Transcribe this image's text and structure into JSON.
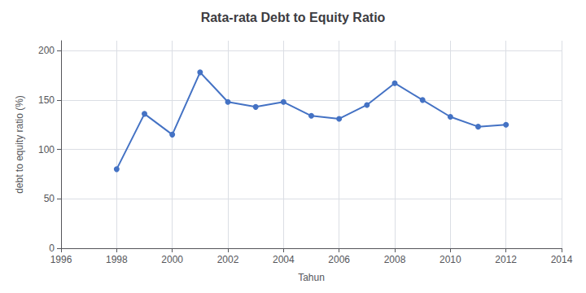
{
  "chart_data": {
    "type": "line",
    "title": "Rata-rata Debt to Equity Ratio",
    "xlabel": "Tahun",
    "ylabel": "debt to equity ratio (%)",
    "x": [
      1998,
      1999,
      2000,
      2001,
      2002,
      2003,
      2004,
      2005,
      2006,
      2007,
      2008,
      2009,
      2010,
      2011,
      2012
    ],
    "values": [
      80,
      136,
      115,
      178,
      148,
      143,
      148,
      134,
      131,
      145,
      167,
      150,
      133,
      123,
      125
    ],
    "color": "#4472C4",
    "marker": "circle",
    "xlim": [
      1996,
      2014
    ],
    "ylim": [
      0,
      210
    ],
    "xticks": [
      1996,
      1998,
      2000,
      2002,
      2004,
      2006,
      2008,
      2010,
      2012,
      2014
    ],
    "yticks": [
      0,
      50,
      100,
      150,
      200
    ],
    "grid": true
  }
}
